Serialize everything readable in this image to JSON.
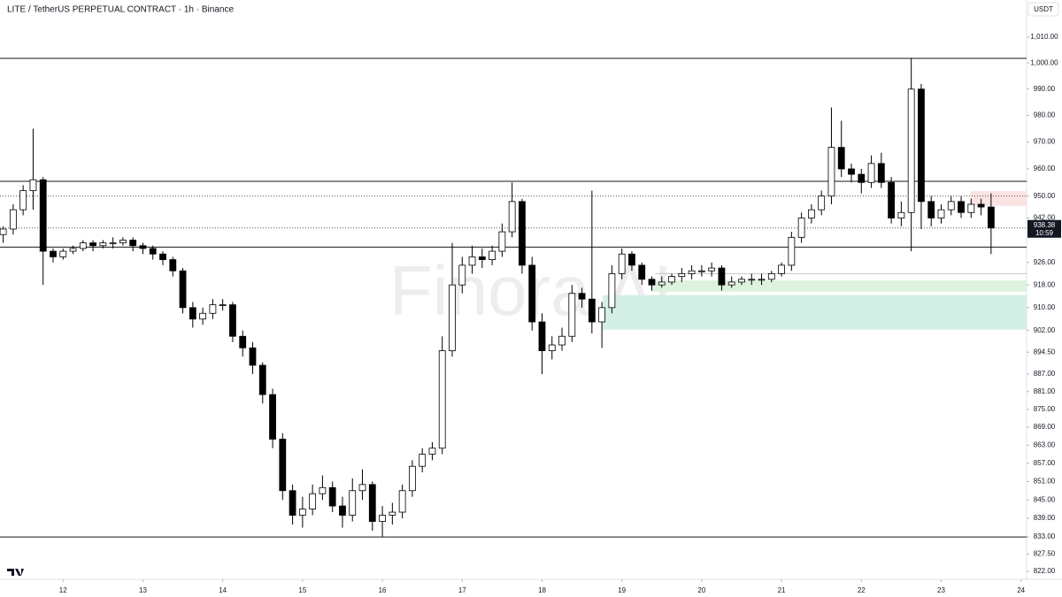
{
  "chart_data": {
    "type": "candlestick",
    "title": "LITE / TetherUS PERPETUAL CONTRACT · 1h · Binance",
    "currency": "USDT",
    "watermark": "Finora AI",
    "countdown": "10:59",
    "log_y": true,
    "grid": false,
    "up_color": "#ffffff",
    "down_color": "#000000",
    "outline_color": "#000000",
    "xlim": [
      11.21,
      24.07
    ],
    "xticks": [
      12,
      13,
      14,
      15,
      16,
      17,
      18,
      19,
      20,
      21,
      22,
      23,
      24
    ],
    "ylim": [
      819.5,
      1024.6
    ],
    "yticks": [
      {
        "value": 1010,
        "label": "1,010.00"
      },
      {
        "value": 1000,
        "label": "1,000.00"
      },
      {
        "value": 990,
        "label": "990.00"
      },
      {
        "value": 980,
        "label": "980.00"
      },
      {
        "value": 970,
        "label": "970.00"
      },
      {
        "value": 960,
        "label": "960.00"
      },
      {
        "value": 950,
        "label": "950.00"
      },
      {
        "value": 942,
        "label": "942.00"
      },
      {
        "value": 926,
        "label": "926.00"
      },
      {
        "value": 918,
        "label": "918.00"
      },
      {
        "value": 910,
        "label": "910.00"
      },
      {
        "value": 902,
        "label": "902.00"
      },
      {
        "value": 894.5,
        "label": "894.50"
      },
      {
        "value": 887,
        "label": "887.00"
      },
      {
        "value": 881,
        "label": "881.00"
      },
      {
        "value": 875,
        "label": "875.00"
      },
      {
        "value": 869,
        "label": "869.00"
      },
      {
        "value": 863,
        "label": "863.00"
      },
      {
        "value": 857,
        "label": "857.00"
      },
      {
        "value": 851,
        "label": "851.00"
      },
      {
        "value": 845,
        "label": "845.00"
      },
      {
        "value": 839,
        "label": "839.00"
      },
      {
        "value": 833,
        "label": "833.00"
      },
      {
        "value": 827.5,
        "label": "827.50"
      },
      {
        "value": 822,
        "label": "822.00"
      }
    ],
    "levels": [
      1001.8,
      955.4,
      931.5,
      833
    ],
    "dotted_levels": [
      950,
      938.38
    ],
    "level_line": {
      "from": 19.42,
      "value": 922
    },
    "zones": [
      {
        "from": 23.365,
        "low": 946.4,
        "high": 951.8,
        "color": "#fbe3e3"
      },
      {
        "from": 19.37,
        "low": 915.6,
        "high": 919.6,
        "color": "#dcf2dc"
      },
      {
        "from": 18.76,
        "low": 902.3,
        "high": 914.4,
        "color": "#d3efe6"
      }
    ],
    "x": [
      11.25,
      11.375,
      11.5,
      11.625,
      11.75,
      11.875,
      12,
      12.125,
      12.25,
      12.375,
      12.5,
      12.625,
      12.75,
      12.875,
      13,
      13.125,
      13.25,
      13.375,
      13.5,
      13.625,
      13.75,
      13.875,
      14,
      14.125,
      14.25,
      14.375,
      14.5,
      14.625,
      14.75,
      14.875,
      15,
      15.125,
      15.25,
      15.375,
      15.5,
      15.625,
      15.75,
      15.875,
      16,
      16.125,
      16.25,
      16.375,
      16.5,
      16.625,
      16.75,
      16.875,
      17,
      17.125,
      17.25,
      17.375,
      17.5,
      17.625,
      17.75,
      17.875,
      18,
      18.125,
      18.25,
      18.375,
      18.5,
      18.625,
      18.75,
      18.875,
      19,
      19.125,
      19.25,
      19.375,
      19.5,
      19.625,
      19.75,
      19.875,
      20,
      20.125,
      20.25,
      20.375,
      20.5,
      20.625,
      20.75,
      20.875,
      21,
      21.125,
      21.25,
      21.375,
      21.5,
      21.625,
      21.75,
      21.875,
      22,
      22.125,
      22.25,
      22.375,
      22.5,
      22.625,
      22.75,
      22.875,
      23,
      23.125,
      23.25,
      23.375,
      23.5,
      23.625
    ],
    "open": [
      936,
      938,
      945,
      952,
      956,
      930,
      928,
      930,
      931,
      933,
      932,
      933,
      933,
      934,
      932,
      931,
      929,
      927,
      923,
      910,
      906,
      908,
      911,
      911,
      900,
      896,
      890,
      880,
      865,
      848,
      840,
      842,
      847,
      849,
      843,
      840,
      848,
      850,
      838,
      840,
      841,
      848,
      856,
      860,
      862,
      895,
      918,
      925,
      928,
      927,
      930,
      937,
      948,
      925,
      905,
      895,
      897,
      900,
      915,
      913,
      905,
      910,
      922,
      929,
      925,
      920,
      918,
      919,
      921,
      922,
      923,
      923,
      924,
      918,
      919,
      920,
      920,
      920,
      922,
      925,
      935,
      942,
      945,
      950,
      968,
      960,
      958,
      955,
      962,
      955,
      942,
      944,
      990,
      948,
      942,
      945,
      948,
      944,
      947,
      946
    ],
    "high": [
      939,
      947,
      954,
      975,
      957,
      931,
      931,
      932,
      934,
      934,
      934,
      935,
      935,
      935,
      933,
      932,
      930,
      928,
      924,
      912,
      910,
      913,
      913,
      912,
      902,
      898,
      891,
      882,
      867,
      850,
      846,
      850,
      853,
      851,
      846,
      852,
      855,
      851,
      843,
      844,
      850,
      858,
      862,
      864,
      900,
      933,
      928,
      932,
      931,
      932,
      940,
      955,
      949,
      928,
      908,
      900,
      903,
      918,
      917,
      952,
      912,
      925,
      931,
      930,
      926,
      921,
      921,
      922,
      924,
      925,
      925,
      926,
      925,
      921,
      921,
      922,
      922,
      923,
      926,
      937,
      944,
      947,
      952,
      983,
      978,
      962,
      960,
      965,
      966,
      957,
      948,
      1002,
      992,
      950,
      947,
      950,
      950,
      949,
      949,
      951
    ],
    "low": [
      933,
      936,
      943,
      945,
      918,
      926,
      927,
      929,
      930,
      930,
      931,
      931,
      932,
      930,
      929,
      927,
      925,
      921,
      908,
      903,
      904,
      906,
      909,
      898,
      893,
      887,
      877,
      862,
      845,
      837,
      836,
      840,
      845,
      841,
      836,
      838,
      845,
      835,
      833,
      837,
      839,
      846,
      854,
      858,
      860,
      893,
      915,
      922,
      924,
      925,
      928,
      935,
      922,
      902,
      887,
      892,
      895,
      898,
      910,
      901,
      896,
      908,
      920,
      923,
      918,
      916,
      917,
      918,
      919,
      920,
      921,
      921,
      916,
      917,
      918,
      918,
      918,
      919,
      921,
      923,
      933,
      940,
      943,
      947,
      957,
      955,
      951,
      953,
      953,
      940,
      939,
      930,
      938,
      939,
      940,
      943,
      942,
      942,
      943,
      929
    ],
    "close": [
      938,
      945,
      952,
      956,
      930,
      928,
      930,
      931,
      933,
      932,
      933,
      933,
      934,
      932,
      931,
      929,
      927,
      923,
      910,
      906,
      908,
      911,
      911,
      900,
      896,
      890,
      880,
      865,
      848,
      840,
      842,
      847,
      849,
      843,
      840,
      848,
      850,
      838,
      840,
      841,
      848,
      856,
      860,
      862,
      895,
      918,
      925,
      928,
      927,
      930,
      937,
      948,
      925,
      905,
      895,
      897,
      900,
      915,
      913,
      905,
      910,
      922,
      929,
      925,
      920,
      918,
      919,
      921,
      922,
      923,
      923,
      924,
      918,
      919,
      920,
      920,
      920,
      922,
      925,
      935,
      942,
      945,
      950,
      968,
      960,
      958,
      955,
      962,
      955,
      942,
      944,
      990,
      948,
      942,
      945,
      948,
      944,
      947,
      946,
      938.38
    ]
  }
}
